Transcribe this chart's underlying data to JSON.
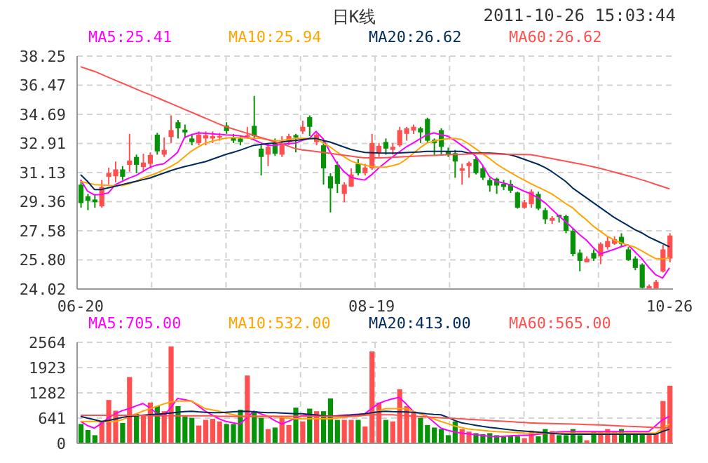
{
  "chart_data": [
    {
      "type": "candlestick",
      "title": "日K线",
      "annotations": [
        "2011-10-26 15:03:44"
      ],
      "categories": [
        "06-20",
        null,
        null,
        null,
        null,
        null,
        null,
        null,
        null,
        null,
        null,
        null,
        null,
        null,
        null,
        null,
        null,
        null,
        null,
        null,
        null,
        null,
        null,
        null,
        null,
        null,
        null,
        null,
        null,
        null,
        null,
        null,
        null,
        null,
        null,
        null,
        null,
        null,
        null,
        null,
        null,
        null,
        "08-19",
        null,
        null,
        null,
        null,
        null,
        null,
        null,
        null,
        null,
        null,
        null,
        null,
        null,
        null,
        null,
        null,
        null,
        null,
        null,
        null,
        null,
        null,
        null,
        null,
        null,
        null,
        null,
        null,
        null,
        null,
        null,
        null,
        null,
        null,
        null,
        null,
        null,
        null,
        null,
        null,
        null,
        null,
        "10-26"
      ],
      "ohlc": [
        [
          30.4,
          30.68,
          28.99,
          29.27
        ],
        [
          29.69,
          29.83,
          28.84,
          29.41
        ],
        [
          29.49,
          29.83,
          28.99,
          29.32
        ],
        [
          29.07,
          30.68,
          28.99,
          30.26
        ],
        [
          30.88,
          31.44,
          30.4,
          31.1
        ],
        [
          30.91,
          31.81,
          30.54,
          31.33
        ],
        [
          31.33,
          31.53,
          30.68,
          30.88
        ],
        [
          31.61,
          33.5,
          31.19,
          31.87
        ],
        [
          32.09,
          32.23,
          31.1,
          31.61
        ],
        [
          31.47,
          32.29,
          31.19,
          31.75
        ],
        [
          31.67,
          32.37,
          31.39,
          32.21
        ],
        [
          33.45,
          33.56,
          32.23,
          32.43
        ],
        [
          32.23,
          33.28,
          32.09,
          32.52
        ],
        [
          33.31,
          34.63,
          32.94,
          33.73
        ],
        [
          34.21,
          34.35,
          33.22,
          33.84
        ],
        [
          33.76,
          34.07,
          33.22,
          33.59
        ],
        [
          33.22,
          33.5,
          32.8,
          33.0
        ],
        [
          32.94,
          33.65,
          32.8,
          33.45
        ],
        [
          33.22,
          33.65,
          32.8,
          33.42
        ],
        [
          33.22,
          33.65,
          32.94,
          33.36
        ],
        [
          33.28,
          33.56,
          33.08,
          33.36
        ],
        [
          34.01,
          34.21,
          33.5,
          33.67
        ],
        [
          33.28,
          33.5,
          32.94,
          33.08
        ],
        [
          33.22,
          33.36,
          32.8,
          33.0
        ],
        [
          33.31,
          33.93,
          33.22,
          33.42
        ],
        [
          33.99,
          35.82,
          33.22,
          33.36
        ],
        [
          32.6,
          32.8,
          30.96,
          32.09
        ],
        [
          32.23,
          32.94,
          31.53,
          32.71
        ],
        [
          32.94,
          33.22,
          32.15,
          32.29
        ],
        [
          32.23,
          33.36,
          32.09,
          32.8
        ],
        [
          33.0,
          33.5,
          32.8,
          33.36
        ],
        [
          33.42,
          33.5,
          32.37,
          33.28
        ],
        [
          33.65,
          34.3,
          33.5,
          33.93
        ],
        [
          34.52,
          34.63,
          33.36,
          33.93
        ],
        [
          33.0,
          33.56,
          32.8,
          33.45
        ],
        [
          32.8,
          33.08,
          30.4,
          31.39
        ],
        [
          30.91,
          31.1,
          28.7,
          30.17
        ],
        [
          31.61,
          31.81,
          29.89,
          30.45
        ],
        [
          29.83,
          30.54,
          29.32,
          30.4
        ],
        [
          30.28,
          31.39,
          30.26,
          31.02
        ],
        [
          31.67,
          31.95,
          30.96,
          31.1
        ],
        [
          31.1,
          31.67,
          30.96,
          31.44
        ],
        [
          31.39,
          33.5,
          31.3,
          32.94
        ],
        [
          32.32,
          32.94,
          32.09,
          32.77
        ],
        [
          33.0,
          33.22,
          32.23,
          32.6
        ],
        [
          32.52,
          32.94,
          32.23,
          32.71
        ],
        [
          32.8,
          33.93,
          32.71,
          33.73
        ],
        [
          33.5,
          33.93,
          33.08,
          33.84
        ],
        [
          33.7,
          34.07,
          33.5,
          33.93
        ],
        [
          33.84,
          33.93,
          32.94,
          33.59
        ],
        [
          34.41,
          34.49,
          32.94,
          33.08
        ],
        [
          33.14,
          33.22,
          32.15,
          32.94
        ],
        [
          33.73,
          33.84,
          32.23,
          32.71
        ],
        [
          32.43,
          32.66,
          32.09,
          32.23
        ],
        [
          32.32,
          32.52,
          30.82,
          31.81
        ],
        [
          31.24,
          31.67,
          30.4,
          31.39
        ],
        [
          31.53,
          31.81,
          30.82,
          31.73
        ],
        [
          31.95,
          32.09,
          31.02,
          31.1
        ],
        [
          31.39,
          31.53,
          30.68,
          30.82
        ],
        [
          30.68,
          30.82,
          29.97,
          30.34
        ],
        [
          30.76,
          30.82,
          29.83,
          30.34
        ],
        [
          30.45,
          30.68,
          30.06,
          30.26
        ],
        [
          30.45,
          30.68,
          29.89,
          30.03
        ],
        [
          29.92,
          29.97,
          28.93,
          28.99
        ],
        [
          28.99,
          29.47,
          28.93,
          29.32
        ],
        [
          29.21,
          30.11,
          28.99,
          29.97
        ],
        [
          29.83,
          29.97,
          28.84,
          28.93
        ],
        [
          28.84,
          28.98,
          28.0,
          28.28
        ],
        [
          28.19,
          28.48,
          28.0,
          28.36
        ],
        [
          28.56,
          28.56,
          28.08,
          28.42
        ],
        [
          28.48,
          28.56,
          27.43,
          27.57
        ],
        [
          27.57,
          27.71,
          26.02,
          26.16
        ],
        [
          26.24,
          26.44,
          25.11,
          25.74
        ],
        [
          25.65,
          26.02,
          25.65,
          25.88
        ],
        [
          26.22,
          26.44,
          25.74,
          25.88
        ],
        [
          26.02,
          26.87,
          25.54,
          26.78
        ],
        [
          26.58,
          27.23,
          26.44,
          26.95
        ],
        [
          26.78,
          27.23,
          26.72,
          27.06
        ],
        [
          27.21,
          27.43,
          26.58,
          26.78
        ],
        [
          26.44,
          26.58,
          25.74,
          25.79
        ],
        [
          25.88,
          26.02,
          25.17,
          25.31
        ],
        [
          25.51,
          25.59,
          24.02,
          24.1
        ],
        [
          24.05,
          24.3,
          24.02,
          24.2
        ],
        [
          24.05,
          24.58,
          24.02,
          24.46
        ],
        [
          25.09,
          26.72,
          25.03,
          26.44
        ],
        [
          25.88,
          27.43,
          25.65,
          27.29
        ]
      ],
      "colors": [
        "#079307",
        "#079307",
        "#079307",
        "#ff4f4f",
        "#ff4f4f",
        "#ff4f4f",
        "#079307",
        "#ff4f4f",
        "#079307",
        "#ff4f4f",
        "#ff4f4f",
        "#079307",
        "#ff4f4f",
        "#ff4f4f",
        "#079307",
        "#079307",
        "#079307",
        "#ff4f4f",
        "#ff4f4f",
        "#ff4f4f",
        "#ff4f4f",
        "#079307",
        "#079307",
        "#079307",
        "#ff4f4f",
        "#079307",
        "#079307",
        "#ff4f4f",
        "#079307",
        "#ff4f4f",
        "#ff4f4f",
        "#079307",
        "#ff4f4f",
        "#079307",
        "#ff4f4f",
        "#079307",
        "#079307",
        "#079307",
        "#ff4f4f",
        "#ff4f4f",
        "#079307",
        "#ff4f4f",
        "#ff4f4f",
        "#ff4f4f",
        "#079307",
        "#ff4f4f",
        "#ff4f4f",
        "#ff4f4f",
        "#ff4f4f",
        "#079307",
        "#079307",
        "#079307",
        "#079307",
        "#079307",
        "#079307",
        "#ff4f4f",
        "#ff4f4f",
        "#079307",
        "#079307",
        "#079307",
        "#079307",
        "#079307",
        "#079307",
        "#079307",
        "#ff4f4f",
        "#ff4f4f",
        "#079307",
        "#079307",
        "#ff4f4f",
        "#079307",
        "#079307",
        "#079307",
        "#079307",
        "#ff4f4f",
        "#079307",
        "#ff4f4f",
        "#ff4f4f",
        "#ff4f4f",
        "#079307",
        "#079307",
        "#079307",
        "#079307",
        "#ff4f4f",
        "#ff4f4f",
        "#ff4f4f",
        "#ff4f4f"
      ],
      "series": [
        {
          "type": "line",
          "name": "MA5:25.41",
          "color": "#ff00ff",
          "values": [
            30.7,
            30.0,
            29.77,
            29.8,
            29.89,
            30.39,
            30.6,
            30.8,
            30.96,
            31.2,
            31.45,
            31.6,
            31.67,
            32.0,
            32.37,
            33.28,
            33.45,
            33.56,
            33.53,
            33.5,
            33.47,
            33.44,
            33.42,
            33.38,
            33.3,
            33.15,
            32.95,
            32.8,
            32.8,
            32.86,
            32.9,
            32.94,
            33.1,
            33.22,
            33.65,
            33.2,
            32.4,
            31.7,
            31.2,
            30.85,
            30.75,
            30.68,
            31.0,
            31.4,
            31.75,
            32.09,
            32.4,
            32.7,
            32.94,
            33.2,
            33.45,
            33.56,
            33.45,
            33.36,
            33.1,
            32.8,
            32.5,
            32.15,
            31.6,
            30.9,
            30.6,
            30.5,
            30.39,
            30.2,
            30.0,
            29.83,
            29.6,
            29.3,
            28.9,
            28.5,
            28.14,
            27.75,
            27.35,
            27.01,
            26.55,
            26.16,
            26.3,
            26.44,
            26.6,
            26.72,
            26.3,
            25.88,
            25.35,
            24.89,
            24.69,
            25.31
          ]
        },
        {
          "type": "line",
          "name": "MA10:25.94",
          "color": "#ffa500",
          "values": [
            30.59,
            30.5,
            30.4,
            30.37,
            30.35,
            30.34,
            30.34,
            30.45,
            30.6,
            30.8,
            30.95,
            31.1,
            31.3,
            31.5,
            31.75,
            32.1,
            32.45,
            32.7,
            32.94,
            33.05,
            33.15,
            33.25,
            33.28,
            33.27,
            33.25,
            33.23,
            33.22,
            33.15,
            33.08,
            33.1,
            33.15,
            33.22,
            33.22,
            33.22,
            33.22,
            32.95,
            32.7,
            32.4,
            32.1,
            31.85,
            31.7,
            31.6,
            31.5,
            31.47,
            31.47,
            31.55,
            31.67,
            31.95,
            32.3,
            32.65,
            32.94,
            33.05,
            33.15,
            33.2,
            33.22,
            33.15,
            32.9,
            32.6,
            32.3,
            32.0,
            31.67,
            31.4,
            31.15,
            30.9,
            30.68,
            30.45,
            30.25,
            30.05,
            29.83,
            29.55,
            29.25,
            28.99,
            28.6,
            28.25,
            27.86,
            27.55,
            27.25,
            27.01,
            26.85,
            26.7,
            26.58,
            26.35,
            26.1,
            25.88,
            25.85,
            25.94
          ]
        },
        {
          "type": "line",
          "name": "MA20:26.62",
          "color": "#002a5c",
          "values": [
            31.01,
            30.6,
            30.1,
            30.1,
            30.2,
            30.3,
            30.4,
            30.5,
            30.6,
            30.7,
            30.8,
            30.95,
            31.1,
            31.25,
            31.38,
            31.5,
            31.6,
            31.7,
            31.8,
            31.95,
            32.1,
            32.25,
            32.37,
            32.5,
            32.65,
            32.8,
            32.85,
            32.9,
            32.95,
            33.0,
            33.05,
            33.1,
            33.15,
            33.2,
            33.22,
            33.1,
            33.0,
            32.85,
            32.7,
            32.55,
            32.45,
            32.37,
            32.35,
            32.33,
            32.32,
            32.32,
            32.34,
            32.36,
            32.38,
            32.4,
            32.43,
            32.43,
            32.43,
            32.43,
            32.43,
            32.43,
            32.32,
            32.32,
            32.32,
            32.32,
            32.3,
            32.27,
            32.23,
            32.1,
            31.95,
            31.8,
            31.65,
            31.45,
            31.2,
            30.9,
            30.6,
            30.2,
            29.9,
            29.6,
            29.3,
            29.0,
            28.7,
            28.4,
            28.15,
            27.9,
            27.65,
            27.45,
            27.2,
            27.0,
            26.8,
            26.6
          ]
        },
        {
          "type": "line",
          "name": "MA60:26.62",
          "color": "#ff5050",
          "values": [
            37.6,
            37.46,
            37.32,
            37.14,
            36.96,
            36.78,
            36.6,
            36.42,
            36.24,
            36.06,
            35.9,
            35.72,
            35.54,
            35.36,
            35.18,
            35.0,
            34.82,
            34.64,
            34.46,
            34.28,
            34.1,
            33.93,
            33.8,
            33.67,
            33.54,
            33.41,
            33.28,
            33.15,
            33.02,
            32.9,
            32.75,
            32.6,
            32.52,
            32.47,
            32.42,
            32.37,
            32.31,
            32.25,
            32.2,
            32.14,
            32.08,
            32.03,
            32.03,
            32.03,
            32.05,
            32.07,
            32.09,
            32.11,
            32.13,
            32.15,
            32.17,
            32.19,
            32.21,
            32.23,
            32.24,
            32.25,
            32.27,
            32.28,
            32.29,
            32.28,
            32.27,
            32.26,
            32.25,
            32.24,
            32.24,
            32.23,
            32.15,
            32.07,
            31.99,
            31.91,
            31.83,
            31.75,
            31.67,
            31.58,
            31.49,
            31.39,
            31.28,
            31.17,
            31.05,
            30.94,
            30.82,
            30.69,
            30.56,
            30.42,
            30.28,
            30.14
          ]
        }
      ],
      "ylim": [
        24.02,
        38.25
      ],
      "yticks": [
        24.02,
        {
          "value": 25.8,
          "label": "25.80"
        },
        27.58,
        29.36,
        31.13,
        32.91,
        34.69,
        36.47,
        38.25
      ],
      "grid": true,
      "legend": "top",
      "marker": "none"
    },
    {
      "type": "bar",
      "categories": [
        null,
        null,
        null,
        null,
        null,
        null,
        null,
        null,
        null,
        null,
        null,
        null,
        null,
        null,
        null,
        null,
        null,
        null,
        null,
        null,
        null,
        null,
        null,
        null,
        null,
        null,
        null,
        null,
        null,
        null,
        null,
        null,
        null,
        null,
        null,
        null,
        null,
        null,
        null,
        null,
        null,
        null,
        null,
        null,
        null,
        null,
        null,
        null,
        null,
        null,
        null,
        null,
        null,
        null,
        null,
        null,
        null,
        null,
        null,
        null,
        null,
        null,
        null,
        null,
        null,
        null,
        null,
        null,
        null,
        null,
        null,
        null,
        null,
        null,
        null,
        null,
        null,
        null,
        null,
        null,
        null,
        null,
        null,
        null,
        null,
        null
      ],
      "series": [
        {
          "values": [
            492,
            337,
            207,
            557,
            1101,
            829,
            518,
            1684,
            751,
            712,
            1036,
            945,
            816,
            2461,
            945,
            686,
            648,
            453,
            596,
            622,
            557,
            492,
            492,
            855,
            1722,
            816,
            648,
            363,
            401,
            648,
            466,
            907,
            557,
            881,
            816,
            816,
            1140,
            596,
            596,
            596,
            596,
            427,
            2331,
            1036,
            596,
            557,
            1373,
            945,
            777,
            648,
            466,
            401,
            363,
            207,
            557,
            363,
            298,
            259,
            233,
            259,
            207,
            168,
            181,
            181,
            130,
            324,
            181,
            363,
            311,
            207,
            207,
            363,
            207,
            78,
            298,
            298,
            363,
            298,
            363,
            259,
            259,
            259,
            259,
            259,
            1075,
            1463
          ],
          "colors": [
            "#079307",
            "#079307",
            "#079307",
            "#ff4f4f",
            "#ff4f4f",
            "#ff4f4f",
            "#079307",
            "#ff4f4f",
            "#079307",
            "#ff4f4f",
            "#ff4f4f",
            "#079307",
            "#ff4f4f",
            "#ff4f4f",
            "#079307",
            "#079307",
            "#079307",
            "#ff4f4f",
            "#ff4f4f",
            "#ff4f4f",
            "#ff4f4f",
            "#079307",
            "#079307",
            "#079307",
            "#ff4f4f",
            "#079307",
            "#079307",
            "#ff4f4f",
            "#079307",
            "#ff4f4f",
            "#ff4f4f",
            "#079307",
            "#ff4f4f",
            "#079307",
            "#ff4f4f",
            "#079307",
            "#079307",
            "#079307",
            "#ff4f4f",
            "#ff4f4f",
            "#079307",
            "#ff4f4f",
            "#ff4f4f",
            "#ff4f4f",
            "#079307",
            "#ff4f4f",
            "#ff4f4f",
            "#ff4f4f",
            "#ff4f4f",
            "#079307",
            "#079307",
            "#079307",
            "#079307",
            "#079307",
            "#079307",
            "#ff4f4f",
            "#ff4f4f",
            "#079307",
            "#079307",
            "#079307",
            "#079307",
            "#079307",
            "#079307",
            "#079307",
            "#ff4f4f",
            "#ff4f4f",
            "#079307",
            "#079307",
            "#ff4f4f",
            "#079307",
            "#079307",
            "#079307",
            "#079307",
            "#ff4f4f",
            "#079307",
            "#ff4f4f",
            "#ff4f4f",
            "#ff4f4f",
            "#079307",
            "#079307",
            "#079307",
            "#079307",
            "#ff4f4f",
            "#ff4f4f",
            "#ff4f4f",
            "#ff4f4f"
          ]
        },
        {
          "type": "line",
          "name": "MA5:705.00",
          "color": "#ff00ff",
          "values": [
            557,
            450,
            388,
            500,
            650,
            750,
            830,
            881,
            950,
            1010,
            900,
            760,
            690,
            900,
            1140,
            1110,
            1075,
            950,
            816,
            720,
            620,
            557,
            520,
            492,
            650,
            816,
            750,
            686,
            580,
            492,
            560,
            640,
            700,
            725,
            710,
            690,
            686,
            700,
            715,
            725,
            740,
            751,
            880,
            1010,
            1080,
            1130,
            1166,
            1000,
            816,
            750,
            686,
            540,
            388,
            330,
            290,
            259,
            240,
            220,
            200,
            180,
            168,
            180,
            190,
            200,
            205,
            207,
            230,
            250,
            270,
            290,
            298,
            298,
            298,
            298,
            298,
            298,
            298,
            298,
            298,
            298,
            298,
            298,
            298,
            450,
            600,
            686
          ]
        },
        {
          "type": "line",
          "name": "MA10:532.00",
          "color": "#ffa500",
          "values": [
            557,
            557,
            557,
            557,
            557,
            557,
            600,
            680,
            750,
            820,
            880,
            940,
            1000,
            1050,
            1075,
            1075,
            1075,
            980,
            881,
            850,
            816,
            770,
            730,
            686,
            686,
            686,
            686,
            686,
            686,
            660,
            640,
            622,
            622,
            622,
            622,
            622,
            622,
            640,
            660,
            686,
            686,
            720,
            760,
            820,
            881,
            881,
            881,
            881,
            816,
            750,
            680,
            620,
            557,
            500,
            440,
            400,
            363,
            345,
            330,
            310,
            298,
            290,
            280,
            270,
            262,
            259,
            259,
            259,
            259,
            259,
            259,
            259,
            259,
            259,
            259,
            259,
            259,
            259,
            259,
            259,
            259,
            259,
            259,
            259,
            380,
            492
          ]
        },
        {
          "type": "line",
          "name": "MA20:413.00",
          "color": "#002a5c",
          "values": [
            686,
            640,
            600,
            557,
            580,
            620,
            660,
            686,
            700,
            715,
            730,
            740,
            751,
            770,
            790,
            805,
            816,
            800,
            790,
            777,
            777,
            790,
            800,
            810,
            816,
            800,
            790,
            780,
            777,
            770,
            760,
            751,
            751,
            735,
            720,
            700,
            686,
            695,
            705,
            715,
            725,
            750,
            775,
            800,
            816,
            805,
            800,
            795,
            790,
            770,
            750,
            735,
            725,
            660,
            580,
            520,
            492,
            460,
            430,
            405,
            388,
            365,
            345,
            325,
            310,
            298,
            285,
            270,
            255,
            240,
            233,
            233,
            233,
            233,
            233,
            233,
            233,
            233,
            233,
            233,
            233,
            233,
            233,
            233,
            300,
            363
          ]
        },
        {
          "type": "line",
          "name": "MA60:565.00",
          "color": "#ff5050",
          "values": [
            712,
            712,
            712,
            712,
            712,
            712,
            712,
            712,
            712,
            712,
            700,
            700,
            700,
            700,
            700,
            700,
            700,
            700,
            700,
            700,
            686,
            686,
            686,
            686,
            686,
            686,
            686,
            686,
            686,
            686,
            686,
            686,
            686,
            686,
            686,
            686,
            686,
            686,
            686,
            686,
            700,
            712,
            725,
            725,
            725,
            725,
            710,
            700,
            690,
            680,
            670,
            660,
            650,
            640,
            630,
            622,
            610,
            600,
            590,
            580,
            570,
            560,
            550,
            540,
            530,
            518,
            513,
            508,
            503,
            498,
            494,
            488,
            483,
            478,
            472,
            466,
            458,
            450,
            442,
            434,
            426,
            418,
            410,
            402,
            395,
            388
          ]
        }
      ],
      "ylim": [
        0,
        2564
      ],
      "yticks": [
        0,
        641,
        1282,
        1923,
        2564
      ],
      "grid": true,
      "legend": "top",
      "marker": "none",
      "tick_labels": "y"
    }
  ]
}
